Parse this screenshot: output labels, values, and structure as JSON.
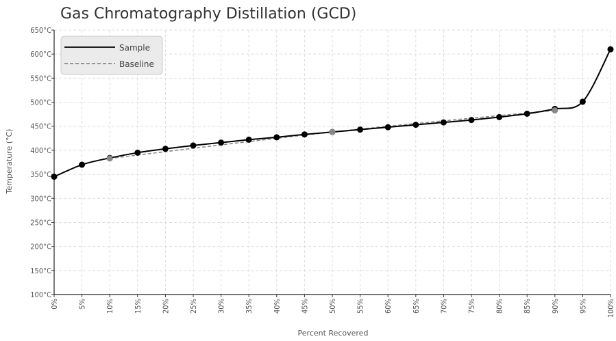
{
  "chart_data": {
    "type": "line",
    "title": "Gas Chromatography Distillation (GCD)",
    "xlabel": "Percent Recovered",
    "ylabel": "Temperature (°C)",
    "xlim": [
      0,
      100
    ],
    "ylim": [
      100,
      650
    ],
    "x_ticks": [
      "0%",
      "5%",
      "10%",
      "15%",
      "20%",
      "25%",
      "30%",
      "35%",
      "40%",
      "45%",
      "50%",
      "55%",
      "60%",
      "65%",
      "70%",
      "75%",
      "80%",
      "85%",
      "90%",
      "95%",
      "100%"
    ],
    "y_ticks": [
      "100°C",
      "150°C",
      "200°C",
      "250°C",
      "300°C",
      "350°C",
      "400°C",
      "450°C",
      "500°C",
      "550°C",
      "600°C",
      "650°C"
    ],
    "grid": true,
    "legend_position": "top-left",
    "series": [
      {
        "name": "Sample",
        "style": "solid",
        "color": "#000000",
        "x": [
          0,
          5,
          10,
          15,
          20,
          25,
          30,
          35,
          40,
          45,
          50,
          55,
          60,
          65,
          70,
          75,
          80,
          85,
          90,
          95,
          100
        ],
        "y": [
          345,
          370,
          384,
          395,
          403,
          410,
          416,
          422,
          427,
          433,
          438,
          443,
          448,
          453,
          458,
          463,
          469,
          476,
          486,
          501,
          610
        ]
      },
      {
        "name": "Baseline",
        "style": "dashed",
        "color": "#888888",
        "x": [
          10,
          50,
          90
        ],
        "y": [
          383,
          438,
          483
        ]
      }
    ]
  }
}
